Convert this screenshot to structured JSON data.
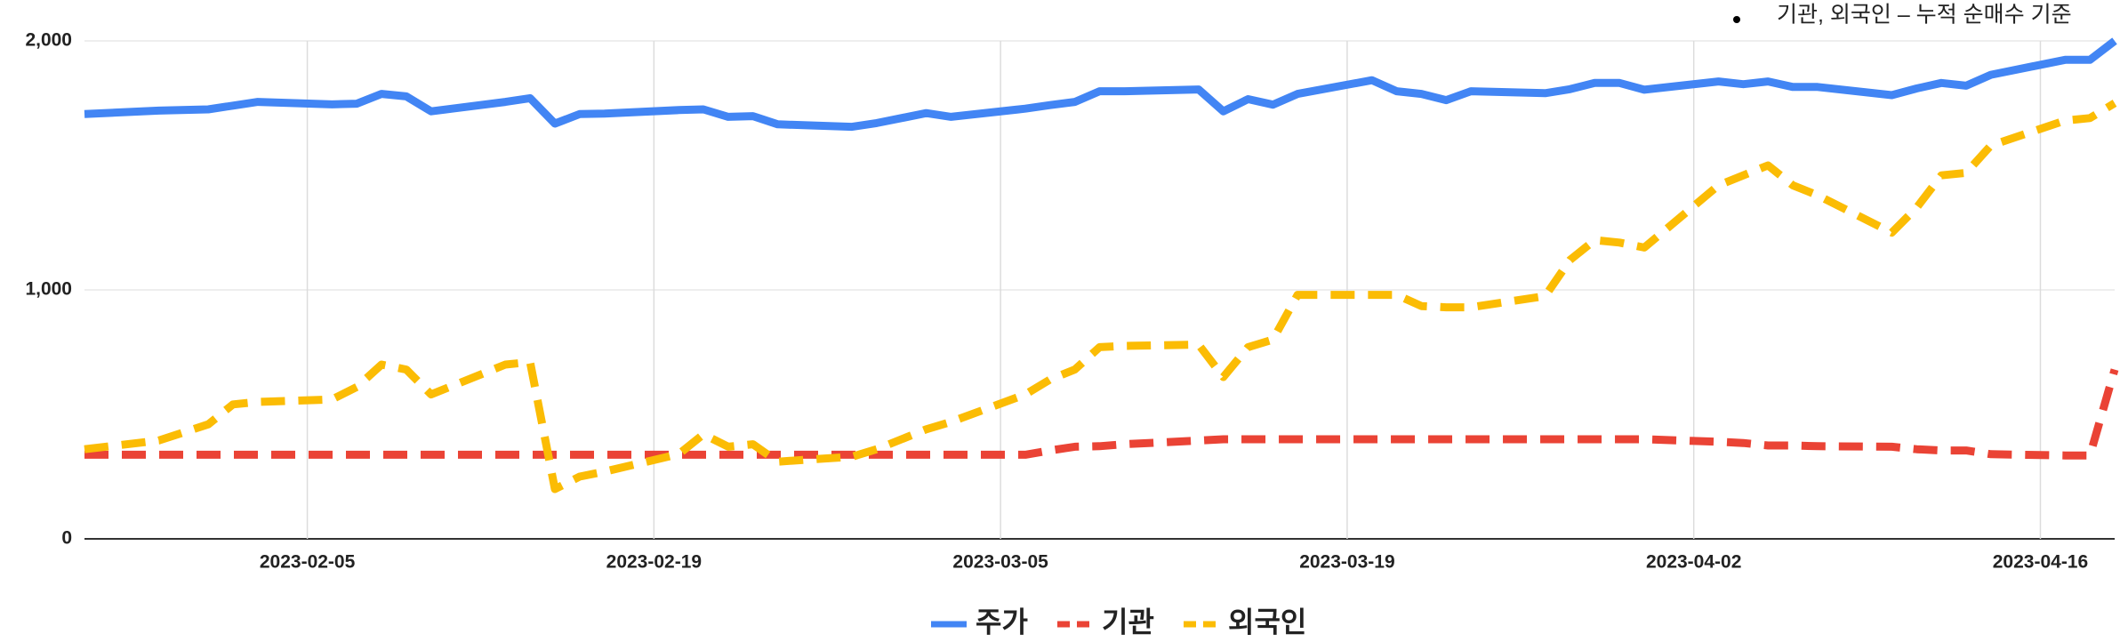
{
  "chart_data": {
    "type": "line",
    "annotation": "기관, 외국인 – 누적 순매수 기준",
    "x": [
      "2023-01-27",
      "2023-01-30",
      "2023-02-01",
      "2023-02-02",
      "2023-02-03",
      "2023-02-06",
      "2023-02-07",
      "2023-02-08",
      "2023-02-09",
      "2023-02-10",
      "2023-02-13",
      "2023-02-14",
      "2023-02-15",
      "2023-02-16",
      "2023-02-17",
      "2023-02-20",
      "2023-02-21",
      "2023-02-22",
      "2023-02-23",
      "2023-02-24",
      "2023-02-27",
      "2023-02-28",
      "2023-03-02",
      "2023-03-03",
      "2023-03-06",
      "2023-03-07",
      "2023-03-08",
      "2023-03-09",
      "2023-03-10",
      "2023-03-13",
      "2023-03-14",
      "2023-03-15",
      "2023-03-16",
      "2023-03-17",
      "2023-03-20",
      "2023-03-21",
      "2023-03-22",
      "2023-03-23",
      "2023-03-24",
      "2023-03-27",
      "2023-03-28",
      "2023-03-29",
      "2023-03-30",
      "2023-03-31",
      "2023-04-03",
      "2023-04-04",
      "2023-04-05",
      "2023-04-06",
      "2023-04-07",
      "2023-04-10",
      "2023-04-11",
      "2023-04-12",
      "2023-04-13",
      "2023-04-14",
      "2023-04-17",
      "2023-04-18",
      "2023-04-19"
    ],
    "series": [
      {
        "name": "주가",
        "color": "#4285f4",
        "line_style": "solid",
        "values": [
          1706,
          1720,
          1725,
          1740,
          1755,
          1745,
          1748,
          1787,
          1777,
          1717,
          1755,
          1770,
          1668,
          1706,
          1708,
          1722,
          1725,
          1695,
          1698,
          1665,
          1655,
          1670,
          1710,
          1695,
          1728,
          1742,
          1755,
          1798,
          1798,
          1805,
          1717,
          1766,
          1744,
          1787,
          1842,
          1798,
          1787,
          1762,
          1798,
          1790,
          1806,
          1831,
          1831,
          1804,
          1837,
          1826,
          1837,
          1815,
          1815,
          1782,
          1809,
          1831,
          1820,
          1864,
          1924,
          1924,
          2000
        ]
      },
      {
        "name": "기관",
        "color": "#ea4335",
        "line_style": "dashed",
        "values": [
          338,
          338,
          338,
          338,
          338,
          338,
          338,
          338,
          338,
          338,
          338,
          338,
          338,
          338,
          338,
          338,
          338,
          338,
          338,
          338,
          338,
          338,
          338,
          338,
          338,
          355,
          370,
          372,
          380,
          395,
          400,
          400,
          400,
          400,
          400,
          400,
          400,
          400,
          400,
          400,
          400,
          400,
          400,
          400,
          390,
          385,
          375,
          375,
          372,
          370,
          360,
          355,
          355,
          340,
          335,
          335,
          680
        ]
      },
      {
        "name": "외국인",
        "color": "#fbbc04",
        "line_style": "dashed",
        "values": [
          360,
          395,
          460,
          540,
          550,
          560,
          610,
          700,
          680,
          580,
          700,
          710,
          200,
          250,
          270,
          340,
          420,
          370,
          380,
          310,
          330,
          360,
          440,
          470,
          580,
          640,
          680,
          770,
          775,
          780,
          650,
          770,
          800,
          980,
          980,
          980,
          935,
          930,
          930,
          975,
          1120,
          1200,
          1190,
          1170,
          1420,
          1460,
          1500,
          1420,
          1380,
          1230,
          1330,
          1460,
          1470,
          1580,
          1680,
          1690,
          1750
        ]
      }
    ],
    "xlim": [
      "2023-01-27",
      "2023-04-19"
    ],
    "xticks": [
      "2023-02-05",
      "2023-02-19",
      "2023-03-05",
      "2023-03-19",
      "2023-04-02",
      "2023-04-16"
    ],
    "ylim": [
      0,
      2000
    ],
    "yticks": [
      0,
      {
        "value": 1000,
        "label": "1,000"
      },
      {
        "value": 2000,
        "label": "2,000"
      }
    ],
    "grid": true,
    "legend": "bottom"
  }
}
